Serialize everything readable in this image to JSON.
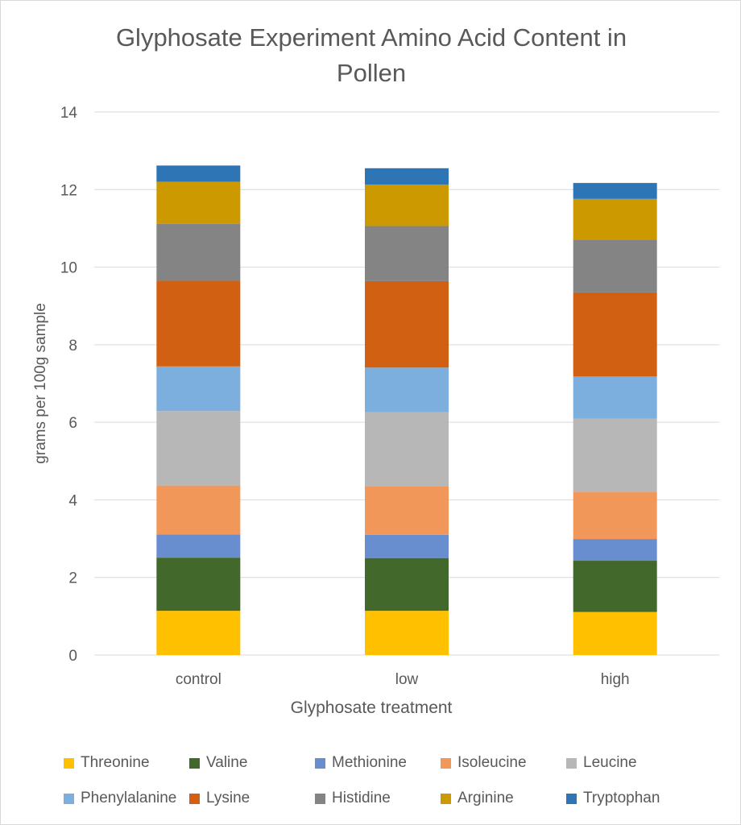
{
  "chart_data": {
    "type": "bar",
    "stacked": true,
    "title_lines": [
      "Glyphosate Experiment Amino Acid Content in",
      "Pollen"
    ],
    "xlabel": "Glyphosate treatment",
    "ylabel": "grams per 100g sample",
    "ylim": [
      0,
      14
    ],
    "yticks": [
      0,
      2,
      4,
      6,
      8,
      10,
      12,
      14
    ],
    "grid": true,
    "legend_position": "bottom",
    "categories": [
      "control",
      "low",
      "high"
    ],
    "series": [
      {
        "name": "Threonine",
        "color": "#FFC000",
        "values": [
          1.14,
          1.14,
          1.11
        ]
      },
      {
        "name": "Valine",
        "color": "#43682B",
        "values": [
          1.37,
          1.36,
          1.32
        ]
      },
      {
        "name": "Methionine",
        "color": "#698ED0",
        "values": [
          0.6,
          0.6,
          0.56
        ]
      },
      {
        "name": "Isoleucine",
        "color": "#F1975A",
        "values": [
          1.26,
          1.25,
          1.22
        ]
      },
      {
        "name": "Leucine",
        "color": "#B7B7B7",
        "values": [
          1.92,
          1.91,
          1.88
        ]
      },
      {
        "name": "Phenylalanine",
        "color": "#7CAFDD",
        "values": [
          1.15,
          1.15,
          1.09
        ]
      },
      {
        "name": "Lysine",
        "color": "#D26012",
        "values": [
          2.21,
          2.23,
          2.17
        ]
      },
      {
        "name": "Histidine",
        "color": "#848484",
        "values": [
          1.47,
          1.42,
          1.36
        ]
      },
      {
        "name": "Arginine",
        "color": "#CC9A00",
        "values": [
          1.08,
          1.07,
          1.05
        ]
      },
      {
        "name": "Tryptophan",
        "color": "#2E75B6",
        "values": [
          0.42,
          0.42,
          0.41
        ]
      }
    ]
  }
}
